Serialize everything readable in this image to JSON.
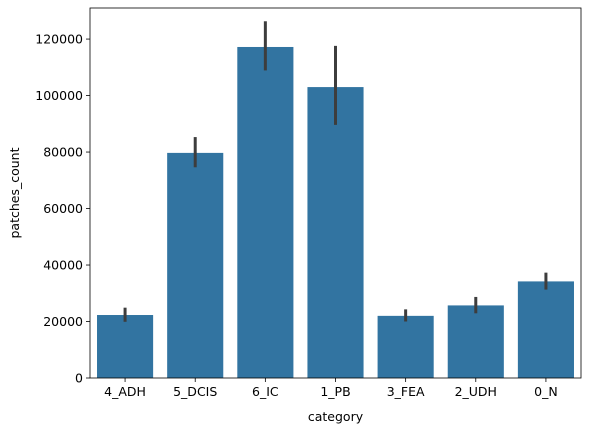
{
  "chart_data": {
    "type": "bar",
    "categories": [
      "4_ADH",
      "5_DCIS",
      "6_IC",
      "1_PB",
      "3_FEA",
      "2_UDH",
      "0_N"
    ],
    "values": [
      22300,
      79700,
      117200,
      103000,
      22000,
      25700,
      34200
    ],
    "error_bars": [
      [
        19900,
        24900
      ],
      [
        74600,
        85300
      ],
      [
        108900,
        126300
      ],
      [
        89600,
        117600
      ],
      [
        20000,
        24300
      ],
      [
        22900,
        28700
      ],
      [
        31300,
        37300
      ]
    ],
    "xlabel": "category",
    "ylabel": "patches_count",
    "ylim": [
      0,
      131000
    ],
    "yticks": [
      0,
      20000,
      40000,
      60000,
      80000,
      100000,
      120000
    ],
    "grid": false,
    "legend": "none",
    "colors": {
      "bar": "#3274a1",
      "errorbar": "#3d3d3d",
      "axis": "#000000"
    }
  }
}
